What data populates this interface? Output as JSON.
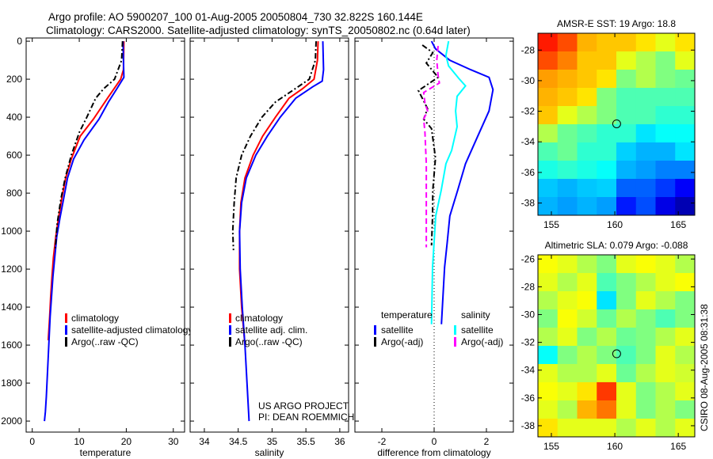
{
  "figure": {
    "title_line1": "Argo profile: AO 5900207_100 01-Aug-2005 20050804_730 32.822S 160.144E",
    "title_line2": "Climatology: CARS2000. Satellite-adjusted climatology: synTS_20050802.nc (0.64d later)",
    "credit_line1": "US ARGO PROJECT",
    "credit_line2": "PI: DEAN ROEMMICH",
    "timestamp": "CSIRO 08-Aug-2005 08:31:38"
  },
  "chart_data": [
    {
      "type": "line",
      "id": "temperature",
      "xlabel": "temperature",
      "ylabel": "",
      "xlim": [
        -1.3,
        32.4
      ],
      "ylim": [
        -17,
        2058
      ],
      "xticks": [
        0,
        10,
        20,
        30
      ],
      "yticks": [
        0,
        200,
        400,
        600,
        800,
        1000,
        1200,
        1400,
        1600,
        1800,
        2000
      ],
      "legend": [
        "climatology",
        "satellite-adjusted climatology",
        "Argo(..raw -QC)"
      ],
      "series": [
        {
          "name": "climatology",
          "color": "#ff0000",
          "linestyle": "solid",
          "x": [
            19.5,
            19.4,
            18.8,
            16.0,
            13.0,
            10.2,
            8.3,
            7.1,
            6.3,
            5.6,
            5.0,
            4.5,
            4.2,
            3.9,
            3.7,
            3.4
          ],
          "depth": [
            0,
            150,
            200,
            300,
            410,
            500,
            620,
            720,
            825,
            930,
            1030,
            1140,
            1240,
            1350,
            1450,
            1575
          ]
        },
        {
          "name": "satellite-adjusted climatology",
          "color": "#0000ff",
          "linestyle": "solid",
          "x": [
            19.3,
            19.4,
            19.5,
            18.0,
            16.2,
            14.2,
            11.0,
            8.8,
            7.5,
            6.7,
            5.9,
            5.2,
            4.4,
            3.8,
            3.4,
            3.0,
            2.8,
            2.6
          ],
          "depth": [
            0,
            100,
            190,
            250,
            320,
            410,
            520,
            620,
            720,
            825,
            930,
            1030,
            1240,
            1450,
            1660,
            1870,
            1950,
            2000
          ]
        },
        {
          "name": "Argo(..raw -QC)",
          "color": "#000000",
          "linestyle": "dashdot",
          "x": [
            19.2,
            19.0,
            17.5,
            15.2,
            13.5,
            11.6,
            10.0,
            8.3,
            7.0,
            6.1,
            5.3,
            4.9
          ],
          "depth": [
            0,
            100,
            200,
            250,
            300,
            400,
            480,
            600,
            720,
            830,
            960,
            1090
          ]
        }
      ]
    },
    {
      "type": "line",
      "id": "salinity",
      "xlabel": "salinity",
      "ylabel": "",
      "xlim": [
        33.79,
        36.13
      ],
      "ylim": [
        -17,
        2058
      ],
      "xticks": [
        34,
        34.5,
        35,
        35.5,
        36
      ],
      "yticks": [
        0,
        200,
        400,
        600,
        800,
        1000,
        1200,
        1400,
        1600,
        1800,
        2000
      ],
      "legend": [
        "climatology",
        "satellite adj. clim.",
        "Argo(..raw -QC)"
      ],
      "series": [
        {
          "name": "climatology",
          "color": "#ff0000",
          "linestyle": "solid",
          "x": [
            35.68,
            35.67,
            35.62,
            35.45,
            35.25,
            35.05,
            34.86,
            34.72,
            34.6,
            34.54,
            34.52,
            34.52,
            34.55,
            34.6
          ],
          "depth": [
            0,
            100,
            200,
            250,
            300,
            400,
            500,
            600,
            720,
            850,
            1000,
            1200,
            1400,
            1600
          ]
        },
        {
          "name": "satellite adj. clim.",
          "color": "#0000ff",
          "linestyle": "solid",
          "x": [
            35.75,
            35.76,
            35.74,
            35.6,
            35.35,
            35.12,
            34.93,
            34.76,
            34.62,
            34.55,
            34.52,
            34.53,
            34.56,
            34.6,
            34.63,
            34.66
          ],
          "depth": [
            0,
            150,
            210,
            240,
            300,
            400,
            500,
            600,
            720,
            850,
            1000,
            1200,
            1400,
            1600,
            1800,
            2000
          ]
        },
        {
          "name": "Argo(..raw -QC)",
          "color": "#000000",
          "linestyle": "dashdot",
          "x": [
            35.65,
            35.64,
            35.55,
            35.3,
            35.05,
            34.85,
            34.68,
            34.55,
            34.47,
            34.44,
            34.42,
            34.43
          ],
          "depth": [
            0,
            100,
            200,
            260,
            320,
            400,
            500,
            600,
            720,
            850,
            1000,
            1100
          ]
        }
      ]
    },
    {
      "type": "line",
      "id": "difference",
      "xlabel": "difference from climatology",
      "ylabel": "",
      "xlim": [
        -3.03,
        3.03
      ],
      "ylim": [
        -17,
        2058
      ],
      "xticks": [
        -2,
        0,
        2
      ],
      "yticks": [
        0,
        200,
        400,
        600,
        800,
        1000,
        1200,
        1400,
        1600,
        1800,
        2000
      ],
      "legend_left": {
        "title": "temperature",
        "items": [
          "satellite",
          "Argo(-adj)"
        ]
      },
      "legend_right": {
        "title": "salinity",
        "items": [
          "satellite",
          "Argo(-adj)"
        ]
      },
      "series": [
        {
          "name": "temperature satellite",
          "color": "#0000ff",
          "linestyle": "solid",
          "x": [
            -0.1,
            0.05,
            0.6,
            1.4,
            2.1,
            2.25,
            2.1,
            1.65,
            1.2,
            0.9,
            0.6,
            0.5,
            0.4,
            0.28
          ],
          "depth": [
            0,
            40,
            100,
            150,
            190,
            255,
            367,
            505,
            645,
            785,
            920,
            1060,
            1190,
            1490
          ]
        },
        {
          "name": "salinity satellite",
          "color": "#00ffff",
          "linestyle": "solid",
          "x": [
            0.55,
            0.45,
            0.55,
            0.97,
            1.2,
            0.88,
            0.82,
            0.88,
            0.67,
            0.45,
            0.27,
            0.06,
            -0.06,
            -0.1
          ],
          "depth": [
            0,
            75,
            130,
            200,
            235,
            290,
            367,
            450,
            575,
            645,
            785,
            920,
            1190,
            1490
          ]
        },
        {
          "name": "temperature Argo(-adj)",
          "color": "#000000",
          "linestyle": "dashdot",
          "x": [
            -0.45,
            -0.05,
            -0.3,
            0.15,
            -0.6,
            -0.25,
            -0.4,
            -0.1,
            0.05,
            -0.05,
            -0.06,
            -0.1
          ],
          "depth": [
            20,
            60,
            115,
            190,
            260,
            355,
            410,
            460,
            615,
            785,
            920,
            1075
          ]
        },
        {
          "name": "salinity Argo(-adj)",
          "color": "#ff00ff",
          "linestyle": "dashed",
          "x": [
            0.15,
            0.1,
            0.15,
            0.2,
            -0.4,
            -0.35,
            -0.25,
            -0.4,
            -0.35,
            -0.3,
            -0.3,
            -0.3
          ],
          "depth": [
            25,
            100,
            180,
            220,
            270,
            325,
            367,
            410,
            480,
            645,
            920,
            1085
          ]
        }
      ]
    },
    {
      "type": "heatmap",
      "id": "sst_map",
      "title": "AMSR-E SST: 19 Argo: 18.8",
      "xlim": [
        153.94,
        166.3
      ],
      "ylim": [
        -26.9,
        -38.8
      ],
      "xticks": [
        155,
        160,
        165
      ],
      "yticks": [
        -28,
        -30,
        -32,
        -34,
        -36,
        -38
      ],
      "float_position": {
        "lon": 160.144,
        "lat": -32.822
      },
      "values": [
        [
          0.85,
          0.8,
          0.7,
          0.68,
          0.68,
          0.65,
          0.6,
          0.65
        ],
        [
          0.8,
          0.75,
          0.68,
          0.68,
          0.6,
          0.55,
          0.5,
          0.6
        ],
        [
          0.72,
          0.7,
          0.68,
          0.65,
          0.5,
          0.55,
          0.5,
          0.48
        ],
        [
          0.7,
          0.68,
          0.65,
          0.5,
          0.45,
          0.45,
          0.45,
          0.45
        ],
        [
          0.68,
          0.6,
          0.55,
          0.5,
          0.45,
          0.45,
          0.42,
          0.42
        ],
        [
          0.55,
          0.48,
          0.45,
          0.42,
          0.42,
          0.35,
          0.38,
          0.38
        ],
        [
          0.45,
          0.48,
          0.42,
          0.42,
          0.33,
          0.3,
          0.3,
          0.35
        ],
        [
          0.4,
          0.42,
          0.4,
          0.38,
          0.3,
          0.28,
          0.25,
          0.25
        ],
        [
          0.32,
          0.3,
          0.32,
          0.33,
          0.22,
          0.22,
          0.18,
          0.12
        ],
        [
          0.3,
          0.28,
          0.3,
          0.28,
          0.15,
          0.2,
          0.1,
          0.05
        ]
      ]
    },
    {
      "type": "heatmap",
      "id": "sla_map",
      "title": "Altimetric SLA: 0.079 Argo: -0.088",
      "xlim": [
        153.94,
        166.3
      ],
      "ylim": [
        -25.7,
        -38.8
      ],
      "xticks": [
        155,
        160,
        165
      ],
      "yticks": [
        -26,
        -28,
        -30,
        -32,
        -34,
        -36,
        -38
      ],
      "float_position": {
        "lon": 160.144,
        "lat": -32.822
      },
      "values": [
        [
          0.62,
          0.6,
          0.55,
          0.5,
          0.6,
          0.62,
          0.6,
          0.55
        ],
        [
          0.6,
          0.55,
          0.6,
          0.45,
          0.5,
          0.55,
          0.6,
          0.62
        ],
        [
          0.55,
          0.6,
          0.62,
          0.35,
          0.5,
          0.6,
          0.55,
          0.5
        ],
        [
          0.5,
          0.62,
          0.58,
          0.48,
          0.55,
          0.5,
          0.45,
          0.5
        ],
        [
          0.55,
          0.6,
          0.5,
          0.55,
          0.48,
          0.5,
          0.55,
          0.6
        ],
        [
          0.38,
          0.5,
          0.55,
          0.5,
          0.45,
          0.5,
          0.6,
          0.55
        ],
        [
          0.6,
          0.55,
          0.55,
          0.6,
          0.48,
          0.55,
          0.6,
          0.58
        ],
        [
          0.62,
          0.6,
          0.65,
          0.82,
          0.6,
          0.5,
          0.55,
          0.6
        ],
        [
          0.6,
          0.55,
          0.7,
          0.76,
          0.6,
          0.5,
          0.55,
          0.5
        ],
        [
          0.65,
          0.6,
          0.6,
          0.6,
          0.55,
          0.6,
          0.55,
          0.6
        ]
      ]
    }
  ]
}
